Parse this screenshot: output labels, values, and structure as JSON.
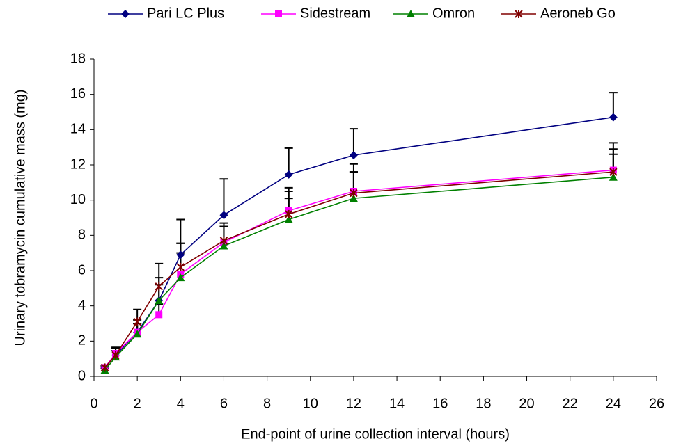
{
  "chart_data": {
    "type": "line",
    "x_label": "End-point of urine collection interval (hours)",
    "y_label": "Urinary tobramycin cumulative mass (mg)",
    "x": [
      0.5,
      1,
      2,
      3,
      4,
      6,
      9,
      12,
      24
    ],
    "series": [
      {
        "name": "Pari LC Plus",
        "color": "#000080",
        "marker": "diamond",
        "values": [
          0.5,
          1.2,
          2.5,
          4.3,
          6.9,
          9.15,
          11.45,
          12.55,
          14.7
        ],
        "errors": [
          0.1,
          0.45,
          1.3,
          2.1,
          2.0,
          2.05,
          1.5,
          1.5,
          1.4
        ]
      },
      {
        "name": "Sidestream",
        "color": "#ff00ff",
        "marker": "square",
        "values": [
          0.5,
          1.3,
          2.5,
          3.5,
          5.8,
          7.6,
          9.4,
          10.5,
          11.7
        ],
        "errors": [
          0.1,
          0.3,
          0.5,
          0.6,
          1.75,
          1.1,
          1.3,
          1.55,
          1.55
        ]
      },
      {
        "name": "Omron",
        "color": "#008000",
        "marker": "triangle",
        "values": [
          0.35,
          1.1,
          2.4,
          4.3,
          5.6,
          7.4,
          8.9,
          10.1,
          11.3
        ],
        "errors": [
          0.1,
          0.35,
          0.6,
          0.9,
          1.4,
          1.1,
          1.2,
          1.5,
          1.3
        ]
      },
      {
        "name": "Aeroneb Go",
        "color": "#800000",
        "marker": "star",
        "values": [
          0.5,
          1.2,
          3.1,
          5.1,
          6.2,
          7.7,
          9.2,
          10.4,
          11.6
        ],
        "errors": [
          0.1,
          0.4,
          0.1,
          0.5,
          1.35,
          0.8,
          1.3,
          1.2,
          1.3
        ]
      }
    ],
    "error_color": "#000000",
    "xlim": [
      0,
      26
    ],
    "xticks": [
      0,
      2,
      4,
      6,
      8,
      10,
      12,
      14,
      16,
      18,
      20,
      22,
      24,
      26
    ],
    "ylim": [
      0,
      18
    ],
    "yticks": [
      0,
      2,
      4,
      6,
      8,
      10,
      12,
      14,
      16,
      18
    ],
    "grid": false,
    "legend": "top"
  }
}
